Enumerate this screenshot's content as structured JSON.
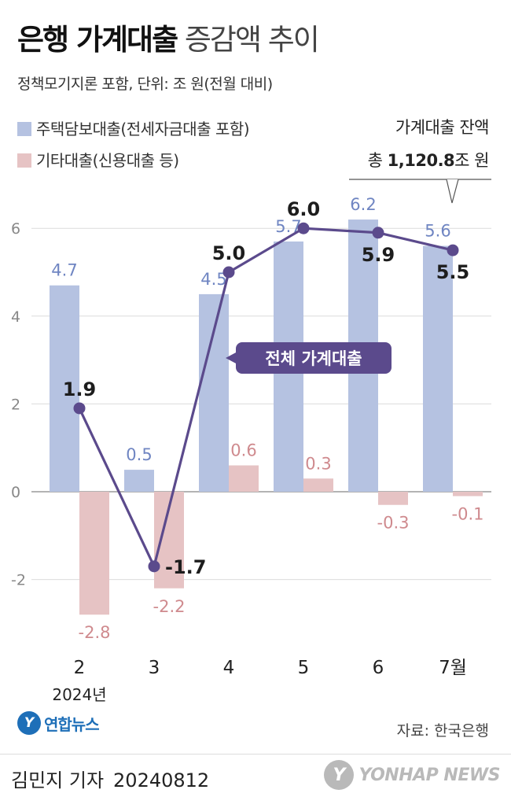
{
  "title": {
    "bold": "은행 가계대출",
    "light": "증감액 추이"
  },
  "subtitle": "정책모기지론 포함, 단위: 조 원(전월 대비)",
  "balance": {
    "label": "가계대출 잔액",
    "prefix": "총",
    "value": "1,120.8",
    "unit": "조 원"
  },
  "source": "자료: 한국은행",
  "logo": {
    "mark": "Y",
    "text": "연합뉴스"
  },
  "credit": {
    "reporter": "김민지 기자",
    "date": "20240812"
  },
  "watermark": {
    "mark": "Y",
    "text": "YONHAP NEWS"
  },
  "colors": {
    "mortgage": "#b5c2e1",
    "other": "#e6c3c4",
    "total": "#5b4a8c",
    "mortgage_label": "#6f85c2",
    "other_label": "#cf8a8e"
  },
  "chart_data": {
    "type": "bar",
    "categories": [
      "2",
      "3",
      "4",
      "5",
      "6",
      "7월"
    ],
    "year_label": "2024년",
    "ylim": [
      -3,
      6.6
    ],
    "yticks": [
      -2,
      0,
      2,
      4,
      6
    ],
    "series": [
      {
        "name": "주택담보대출(전세자금대출 포함)",
        "kind": "bar",
        "values": [
          4.7,
          0.5,
          4.5,
          5.7,
          6.2,
          5.6
        ]
      },
      {
        "name": "기타대출(신용대출 등)",
        "kind": "bar",
        "values": [
          -2.8,
          -2.2,
          0.6,
          0.3,
          -0.3,
          -0.1
        ]
      },
      {
        "name": "전체 가계대출",
        "kind": "line",
        "values": [
          1.9,
          -1.7,
          5.0,
          6.0,
          5.9,
          5.5
        ]
      }
    ]
  }
}
